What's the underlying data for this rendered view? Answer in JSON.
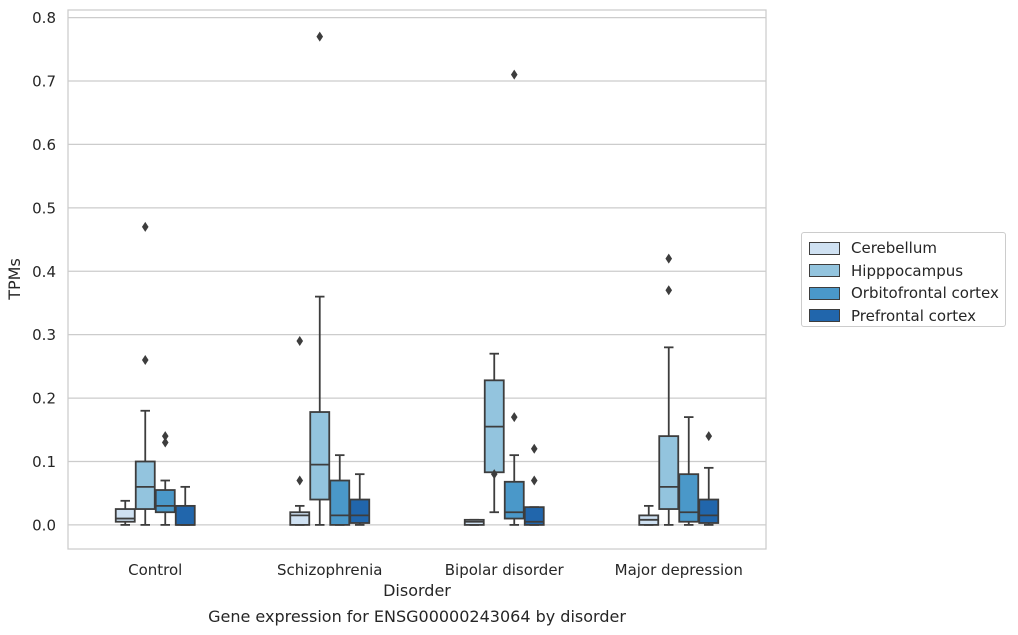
{
  "chart_data": {
    "type": "box",
    "title": "Gene expression for ENSG00000243064 by disorder",
    "xlabel": "Disorder",
    "ylabel": "TPMs",
    "ylim": [
      -0.038,
      0.812
    ],
    "yticks": [
      "0.0",
      "0.1",
      "0.2",
      "0.3",
      "0.4",
      "0.5",
      "0.6",
      "0.7",
      "0.8"
    ],
    "grid": "horizontal",
    "legend_placement": "right, outside plot",
    "categories": [
      "Control",
      "Schizophrenia",
      "Bipolar disorder",
      "Major depression"
    ],
    "series": [
      {
        "name": "Cerebellum",
        "color": "#cfe1f2",
        "boxes": [
          {
            "q1": 0.005,
            "median": 0.01,
            "q3": 0.025,
            "whisker_low": 0.0,
            "whisker_high": 0.038,
            "outliers": []
          },
          {
            "q1": 0.0,
            "median": 0.015,
            "q3": 0.02,
            "whisker_low": 0.0,
            "whisker_high": 0.03,
            "outliers": [
              0.29,
              0.07
            ]
          },
          {
            "q1": 0.0,
            "median": 0.005,
            "q3": 0.008,
            "whisker_low": 0.0,
            "whisker_high": 0.008,
            "outliers": []
          },
          {
            "q1": 0.0,
            "median": 0.008,
            "q3": 0.015,
            "whisker_low": 0.0,
            "whisker_high": 0.03,
            "outliers": []
          }
        ]
      },
      {
        "name": "Hipppocampus",
        "color": "#93c4de",
        "boxes": [
          {
            "q1": 0.025,
            "median": 0.06,
            "q3": 0.1,
            "whisker_low": 0.0,
            "whisker_high": 0.18,
            "outliers": [
              0.47,
              0.26
            ]
          },
          {
            "q1": 0.04,
            "median": 0.095,
            "q3": 0.178,
            "whisker_low": 0.0,
            "whisker_high": 0.36,
            "outliers": [
              0.77
            ]
          },
          {
            "q1": 0.083,
            "median": 0.155,
            "q3": 0.228,
            "whisker_low": 0.02,
            "whisker_high": 0.27,
            "outliers": [
              0.08
            ]
          },
          {
            "q1": 0.025,
            "median": 0.06,
            "q3": 0.14,
            "whisker_low": 0.0,
            "whisker_high": 0.28,
            "outliers": [
              0.42,
              0.37
            ]
          }
        ]
      },
      {
        "name": "Orbitofrontal cortex",
        "color": "#4a98c9",
        "boxes": [
          {
            "q1": 0.02,
            "median": 0.03,
            "q3": 0.055,
            "whisker_low": 0.0,
            "whisker_high": 0.07,
            "outliers": [
              0.14,
              0.13
            ]
          },
          {
            "q1": 0.0,
            "median": 0.015,
            "q3": 0.07,
            "whisker_low": 0.0,
            "whisker_high": 0.11,
            "outliers": []
          },
          {
            "q1": 0.01,
            "median": 0.02,
            "q3": 0.068,
            "whisker_low": 0.0,
            "whisker_high": 0.11,
            "outliers": [
              0.71,
              0.17
            ]
          },
          {
            "q1": 0.005,
            "median": 0.02,
            "q3": 0.08,
            "whisker_low": 0.0,
            "whisker_high": 0.17,
            "outliers": []
          }
        ]
      },
      {
        "name": "Prefrontal cortex",
        "color": "#2166ac",
        "boxes": [
          {
            "q1": 0.0,
            "median": 0.0,
            "q3": 0.03,
            "whisker_low": 0.0,
            "whisker_high": 0.06,
            "outliers": []
          },
          {
            "q1": 0.003,
            "median": 0.015,
            "q3": 0.04,
            "whisker_low": 0.0,
            "whisker_high": 0.08,
            "outliers": []
          },
          {
            "q1": 0.0,
            "median": 0.005,
            "q3": 0.028,
            "whisker_low": 0.0,
            "whisker_high": 0.028,
            "outliers": [
              0.12,
              0.07
            ]
          },
          {
            "q1": 0.003,
            "median": 0.015,
            "q3": 0.04,
            "whisker_low": 0.0,
            "whisker_high": 0.09,
            "outliers": [
              0.14
            ]
          }
        ]
      }
    ]
  }
}
